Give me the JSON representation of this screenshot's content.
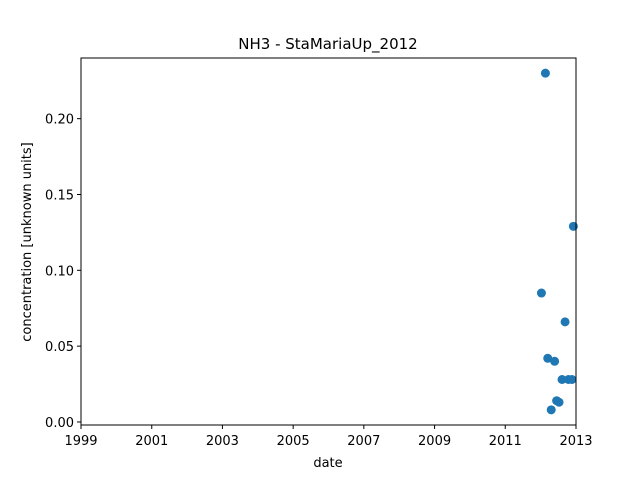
{
  "chart_data": {
    "type": "scatter",
    "title": "NH3 - StaMariaUp_2012",
    "xlabel": "date",
    "ylabel": "concentration [unknown units]",
    "x_ticks": [
      "1999",
      "2001",
      "2003",
      "2005",
      "2007",
      "2009",
      "2011",
      "2013"
    ],
    "y_ticks": [
      "0.00",
      "0.05",
      "0.10",
      "0.15",
      "0.20"
    ],
    "xlim": [
      "1999-01-01",
      "2013-01-01"
    ],
    "ylim": [
      -0.002,
      0.24
    ],
    "grid": false,
    "legend": "none",
    "marker_color": "#1f77b4",
    "series": [
      {
        "points": [
          {
            "x": "2012-01-10",
            "y": 0.085
          },
          {
            "x": "2012-02-20",
            "y": 0.23
          },
          {
            "x": "2012-03-15",
            "y": 0.042
          },
          {
            "x": "2012-04-20",
            "y": 0.008
          },
          {
            "x": "2012-05-25",
            "y": 0.04
          },
          {
            "x": "2012-06-15",
            "y": 0.014
          },
          {
            "x": "2012-07-10",
            "y": 0.013
          },
          {
            "x": "2012-08-10",
            "y": 0.028
          },
          {
            "x": "2012-09-10",
            "y": 0.066
          },
          {
            "x": "2012-10-15",
            "y": 0.028
          },
          {
            "x": "2012-11-20",
            "y": 0.028
          },
          {
            "x": "2012-12-05",
            "y": 0.129
          }
        ]
      }
    ]
  }
}
